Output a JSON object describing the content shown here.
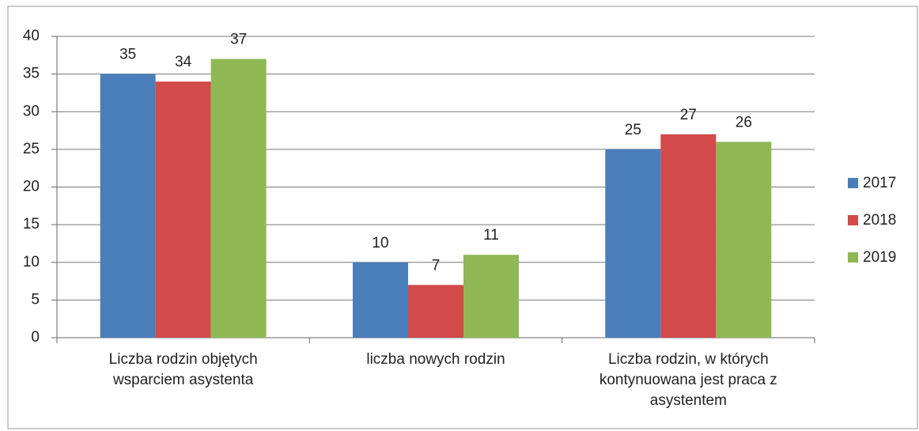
{
  "chart_data": {
    "type": "bar",
    "categories": [
      "Liczba rodzin objętych wsparciem asystenta",
      "liczba nowych rodzin",
      "Liczba rodzin, w których kontynuowana jest praca z asystentem"
    ],
    "series": [
      {
        "name": "2017",
        "color": "#4a7ebb",
        "values": [
          35,
          10,
          25
        ]
      },
      {
        "name": "2018",
        "color": "#d24a4a",
        "values": [
          34,
          7,
          27
        ]
      },
      {
        "name": "2019",
        "color": "#8fb855",
        "values": [
          37,
          11,
          26
        ]
      }
    ],
    "ylim": [
      0,
      40
    ],
    "yticks": [
      0,
      5,
      10,
      15,
      20,
      25,
      30,
      35,
      40
    ],
    "grid": true,
    "legend": "right"
  }
}
